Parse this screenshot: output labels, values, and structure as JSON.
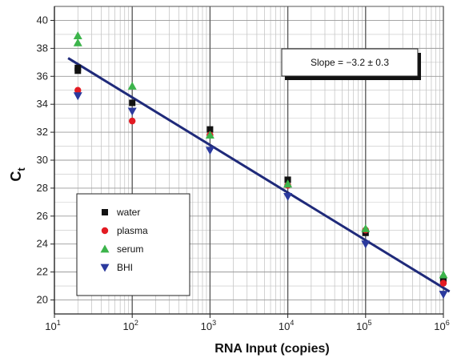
{
  "chart_data": {
    "type": "scatter",
    "title": "",
    "xlabel": "RNA Input (copies)",
    "ylabel": "C",
    "ylabel_subscript": "t",
    "x_scale": "log",
    "xlim": [
      10,
      1000000
    ],
    "ylim": [
      19,
      41
    ],
    "grid": true,
    "x_ticks": [
      {
        "value": 10,
        "exponent": "1"
      },
      {
        "value": 100,
        "exponent": "2"
      },
      {
        "value": 1000,
        "exponent": "3"
      },
      {
        "value": 10000,
        "exponent": "4"
      },
      {
        "value": 100000,
        "exponent": "5"
      },
      {
        "value": 1000000,
        "exponent": "6"
      }
    ],
    "y_ticks": [
      "20",
      "22",
      "24",
      "26",
      "28",
      "30",
      "32",
      "34",
      "36",
      "38",
      "40"
    ],
    "legend_placement": "left-middle",
    "annotation": "Slope = −3.2 ± 0.3",
    "series": [
      {
        "name": "water",
        "marker": "square",
        "color": "#111111",
        "points": [
          [
            20,
            36.4
          ],
          [
            20,
            36.6
          ],
          [
            100,
            34.1
          ],
          [
            1000,
            32.2
          ],
          [
            10000,
            28.6
          ],
          [
            100000,
            24.8
          ],
          [
            1000000,
            21.5
          ]
        ]
      },
      {
        "name": "plasma",
        "marker": "circle",
        "color": "#e31b23",
        "points": [
          [
            20,
            35.0
          ],
          [
            100,
            32.8
          ],
          [
            1000,
            31.8
          ],
          [
            10000,
            28.2
          ],
          [
            100000,
            25.0
          ],
          [
            1000000,
            21.2
          ]
        ]
      },
      {
        "name": "serum",
        "marker": "triangle-up",
        "color": "#3cb44b",
        "points": [
          [
            20,
            38.9
          ],
          [
            20,
            38.4
          ],
          [
            100,
            35.3
          ],
          [
            1000,
            31.8
          ],
          [
            10000,
            28.3
          ],
          [
            100000,
            25.1
          ],
          [
            1000000,
            21.8
          ]
        ]
      },
      {
        "name": "BHI",
        "marker": "triangle-down",
        "color": "#2b3a9e",
        "points": [
          [
            20,
            34.6
          ],
          [
            100,
            33.5
          ],
          [
            1000,
            30.7
          ],
          [
            10000,
            27.4
          ],
          [
            100000,
            24.0
          ],
          [
            1000000,
            20.4
          ]
        ]
      }
    ],
    "fit_line": {
      "color": "#1f2a7a",
      "x": [
        15,
        1200000
      ],
      "y": [
        37.3,
        20.6
      ]
    }
  }
}
